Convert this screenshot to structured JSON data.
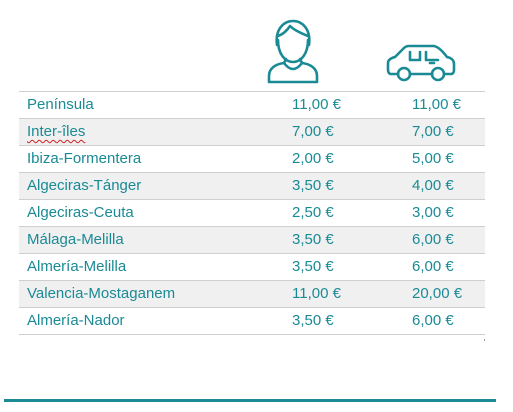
{
  "colors": {
    "accent": "#1a8a95",
    "row_alt": "#f0f0f0",
    "border": "#cfcfcf"
  },
  "icons": {
    "passenger": "person-icon",
    "vehicle": "car-icon"
  },
  "rows": [
    {
      "route": "Península",
      "passenger": "11,00 €",
      "vehicle": "11,00 €"
    },
    {
      "route": "Inter-îles",
      "passenger": "7,00 €",
      "vehicle": "7,00 €"
    },
    {
      "route": "Ibiza-Formentera",
      "passenger": "2,00 €",
      "vehicle": "5,00 €"
    },
    {
      "route": "Algeciras-Tánger",
      "passenger": "3,50 €",
      "vehicle": "4,00 €"
    },
    {
      "route": "Algeciras-Ceuta",
      "passenger": "2,50 €",
      "vehicle": "3,00 €"
    },
    {
      "route": "Málaga-Melilla",
      "passenger": "3,50 €",
      "vehicle": "6,00 €"
    },
    {
      "route": "Almería-Melilla",
      "passenger": "3,50 €",
      "vehicle": "6,00 €"
    },
    {
      "route": "Valencia-Mostaganem",
      "passenger": "11,00 €",
      "vehicle": "20,00 €"
    },
    {
      "route": "Almería-Nador",
      "passenger": "3,50 €",
      "vehicle": "6,00 €"
    }
  ]
}
